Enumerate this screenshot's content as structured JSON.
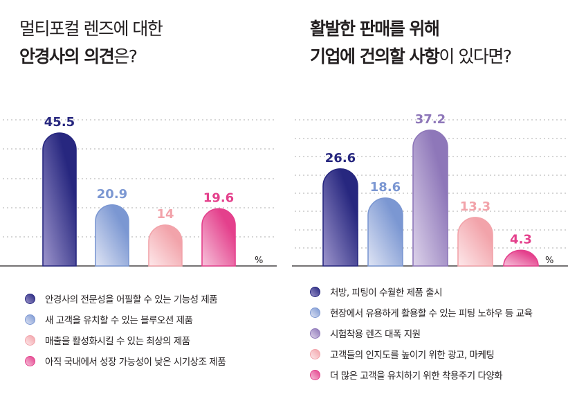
{
  "chart_data": [
    {
      "type": "bar",
      "title_line1": "멀티포컬 렌즈에 대한",
      "title_line2_bold": "안경사의 의견",
      "title_line2_rest": "은?",
      "unit": "%",
      "ylim": [
        0,
        50
      ],
      "categories": [
        "안경사의 전문성을 어필할 수 있는 기능성 제품",
        "새 고객을 유치할 수 있는 블루오션 제품",
        "매출을 활성화시킬 수 있는 최상의 제품",
        "아직 국내에서 성장 가능성이 낮은 시기상조 제품"
      ],
      "values": [
        45.5,
        20.9,
        14,
        19.6
      ],
      "labels": [
        "45.5",
        "20.9",
        "14",
        "19.6"
      ],
      "colors": [
        "#27277f",
        "#7b97d2",
        "#f2a3aa",
        "#e4408c"
      ],
      "light_colors": [
        "#9d95cc",
        "#dfe4f4",
        "#fde8ea",
        "#f6c2da"
      ]
    },
    {
      "type": "bar",
      "title_line1": "활발한 판매를 위해",
      "title_line2_bold": "기업에 건의할 사항",
      "title_line2_rest": "이 있다면?",
      "unit": "%",
      "ylim": [
        0,
        40
      ],
      "categories": [
        "처방, 피팅이 수월한 제품 출시",
        "현장에서 유용하게 활용할 수 있는 피팅 노하우 등 교육",
        "시험착용 렌즈 대폭 지원",
        "고객들의 인지도를 높이기 위한 광고, 마케팅",
        "더 많은 고객을 유치하기 위한 착용주기 다양화"
      ],
      "values": [
        26.6,
        18.6,
        37.2,
        13.3,
        4.3
      ],
      "labels": [
        "26.6",
        "18.6",
        "37.2",
        "13.3",
        "4.3"
      ],
      "colors": [
        "#27277f",
        "#7b97d2",
        "#8e77b9",
        "#f2a3aa",
        "#e4408c"
      ],
      "light_colors": [
        "#9d95cc",
        "#dfe4f4",
        "#ddd3ea",
        "#fde8ea",
        "#f6c2da"
      ]
    }
  ]
}
